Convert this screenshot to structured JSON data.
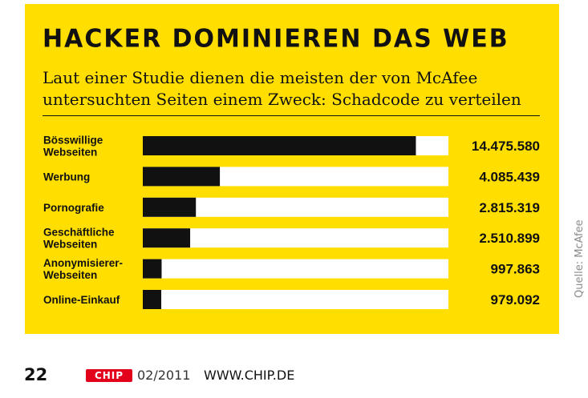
{
  "title": "HACKER DOMINIEREN DAS WEB",
  "subtitle_line1": "Laut einer Studie dienen die meisten der von McAfee",
  "subtitle_line2": "untersuchten Seiten einem Zweck: Schadcode zu verteilen",
  "source": "Quelle: McAfee",
  "footer": {
    "page_number": "22",
    "logo_text": "CHIP",
    "issue": "02/2011",
    "website": "WWW.CHIP.DE"
  },
  "colors": {
    "panel": "#ffde00",
    "bar_fill": "#111111",
    "bar_track": "#ffffff",
    "logo": "#e2001a"
  },
  "chart_data": {
    "type": "bar",
    "orientation": "horizontal",
    "title": "HACKER DOMINIEREN DAS WEB",
    "categories": [
      [
        "Bösswillige",
        "Webseiten"
      ],
      [
        "Werbung"
      ],
      [
        "Pornografie"
      ],
      [
        "Geschäftliche",
        "Webseiten"
      ],
      [
        "Anonymisierer-",
        "Webseiten"
      ],
      [
        "Online-Einkauf"
      ]
    ],
    "values": [
      14475580,
      4085439,
      2815319,
      2510899,
      997863,
      979092
    ],
    "value_labels": [
      "14.475.580",
      "4.085.439",
      "2.815.319",
      "2.510.899",
      "997.863",
      "979.092"
    ],
    "xlim": [
      0,
      16200000
    ],
    "grid": false,
    "legend": "none"
  }
}
